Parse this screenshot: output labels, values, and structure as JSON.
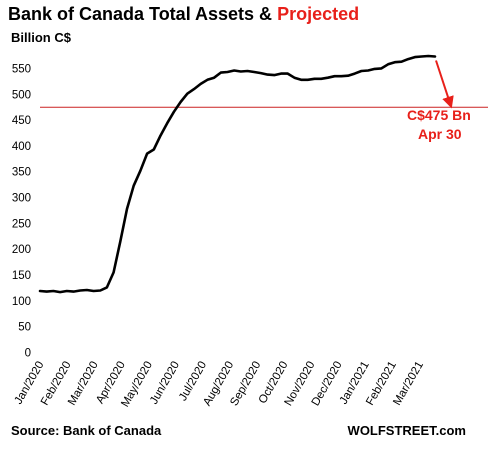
{
  "chart_data": {
    "type": "line",
    "title": "Bank of Canada Total Assets & ",
    "title_highlight": "Projected",
    "title_highlight_color": "#e8201a",
    "unit_label": "Billion C$",
    "ylim": [
      0,
      575
    ],
    "y_ticks": [
      "0",
      "50",
      "100",
      "150",
      "200",
      "250",
      "300",
      "350",
      "400",
      "450",
      "500",
      "550"
    ],
    "x_ticks": [
      "Jan/2020",
      "Feb/2020",
      "Mar/2020",
      "Apr/2020",
      "May/2020",
      "Jun/2020",
      "Jul/2020",
      "Aug/2020",
      "Sep/2020",
      "Oct/2020",
      "Nov/2020",
      "Dec/2020",
      "Jan/2021",
      "Feb/2021",
      "Mar/2021"
    ],
    "grid": false,
    "series": [
      {
        "color": "#000000",
        "values": [
          119,
          118,
          119,
          117,
          119,
          118,
          120,
          121,
          119,
          120,
          126,
          155,
          215,
          278,
          323,
          352,
          385,
          393,
          420,
          444,
          466,
          485,
          501,
          510,
          520,
          528,
          532,
          542,
          543,
          546,
          544,
          545,
          543,
          541,
          538,
          537,
          540,
          540,
          532,
          528,
          528,
          530,
          530,
          532,
          535,
          535,
          536,
          540,
          545,
          546,
          549,
          550,
          558,
          562,
          563,
          568,
          572,
          573,
          574,
          573
        ]
      }
    ],
    "reference_line": {
      "value": 475,
      "color": "#cc2222"
    },
    "annotation": {
      "line1": "C$475 Bn",
      "line2": "Apr 30",
      "color": "#e8201a"
    },
    "source": "Source: Bank of Canada",
    "brand": "WOLFSTREET.com"
  }
}
